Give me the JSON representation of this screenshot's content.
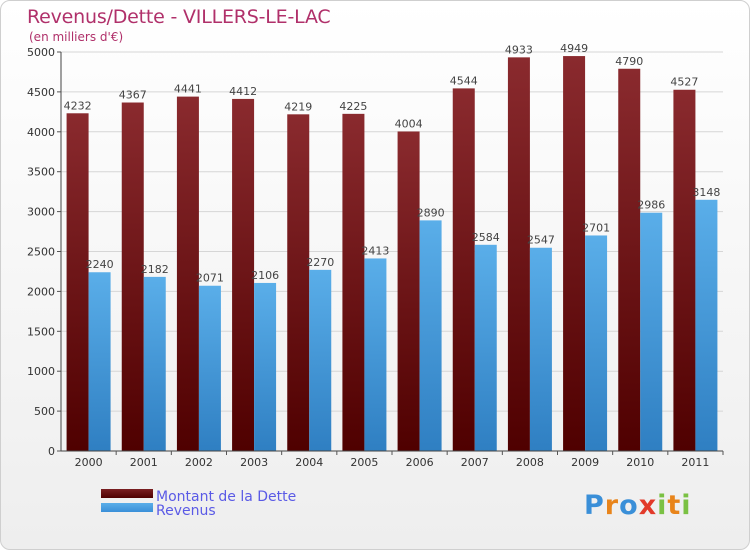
{
  "chart_data": {
    "type": "bar",
    "title": "Revenus/Dette - VILLERS-LE-LAC",
    "subtitle": "(en milliers d'€)",
    "categories": [
      "2000",
      "2001",
      "2002",
      "2003",
      "2004",
      "2005",
      "2006",
      "2007",
      "2008",
      "2009",
      "2010",
      "2011"
    ],
    "series": [
      {
        "name": "Montant de la Dette",
        "color": "#6e1416",
        "values": [
          4232,
          4367,
          4441,
          4412,
          4219,
          4225,
          4004,
          4544,
          4933,
          4949,
          4790,
          4527
        ]
      },
      {
        "name": "Revenus",
        "color": "#4ea3e4",
        "values": [
          2240,
          2182,
          2071,
          2106,
          2270,
          2413,
          2890,
          2584,
          2547,
          2701,
          2986,
          3148
        ]
      }
    ],
    "ylim": [
      0,
      5000
    ],
    "yticks": [
      0,
      500,
      1000,
      1500,
      2000,
      2500,
      3000,
      3500,
      4000,
      4500,
      5000
    ],
    "grid": true,
    "legend_position": "bottom-left"
  },
  "logo": {
    "text": "Proxiti",
    "letters": [
      "P",
      "r",
      "o",
      "x",
      "i",
      "t",
      "i"
    ],
    "colors": [
      "#3a8fd8",
      "#e8841a",
      "#3a8fd8",
      "#e23a2a",
      "#7ac143",
      "#e8841a",
      "#7ac143"
    ]
  }
}
